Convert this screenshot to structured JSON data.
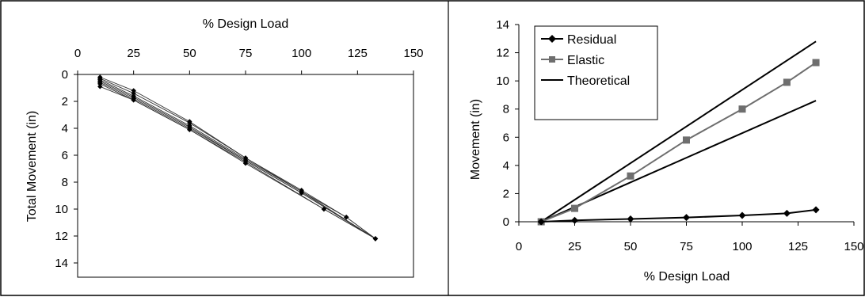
{
  "chart_data": [
    {
      "type": "line",
      "title": "",
      "xlabel": "% Design Load",
      "ylabel": "Total Movement (in)",
      "xaxis_position": "top",
      "y_inverted": true,
      "xlim": [
        0,
        150
      ],
      "ylim": [
        0,
        15
      ],
      "xticks": [
        "0",
        "25",
        "50",
        "75",
        "100",
        "125",
        "150"
      ],
      "yticks": [
        "0",
        "2",
        "4",
        "6",
        "8",
        "10",
        "12",
        "14"
      ],
      "grid": false,
      "legend": null,
      "series": [
        {
          "x": [
            10,
            25,
            50,
            75,
            100,
            120,
            133
          ],
          "y": [
            0.2,
            1.2,
            3.5,
            6.2,
            8.6,
            10.6,
            12.2
          ]
        },
        {
          "x": [
            10,
            25,
            50,
            75,
            100,
            120,
            133
          ],
          "y": [
            0.3,
            1.4,
            3.6,
            6.2,
            8.7,
            10.6,
            12.2
          ]
        },
        {
          "x": [
            10,
            25,
            50,
            75,
            100,
            133
          ],
          "y": [
            0.4,
            1.6,
            3.8,
            6.3,
            8.7,
            12.2
          ]
        },
        {
          "x": [
            10,
            25,
            50,
            75,
            100,
            133
          ],
          "y": [
            0.5,
            1.7,
            3.9,
            6.4,
            8.8,
            12.2
          ]
        },
        {
          "x": [
            10,
            25,
            50,
            75,
            100,
            133
          ],
          "y": [
            0.6,
            1.8,
            4.0,
            6.4,
            8.8,
            12.2
          ]
        },
        {
          "x": [
            10,
            25,
            50,
            75,
            110,
            133
          ],
          "y": [
            0.7,
            1.9,
            4.1,
            6.5,
            10.0,
            12.2
          ]
        },
        {
          "x": [
            10,
            25,
            50,
            75,
            110,
            133
          ],
          "y": [
            0.9,
            1.9,
            4.1,
            6.6,
            10.0,
            12.2
          ]
        }
      ]
    },
    {
      "type": "line",
      "title": "",
      "xlabel": "% Design Load",
      "ylabel": "Movement (in)",
      "xlim": [
        0,
        150
      ],
      "ylim": [
        0,
        14
      ],
      "xticks": [
        "0",
        "25",
        "50",
        "75",
        "100",
        "125",
        "150"
      ],
      "yticks": [
        "0",
        "2",
        "4",
        "6",
        "8",
        "10",
        "12",
        "14"
      ],
      "grid": false,
      "legend": "top-left",
      "series": [
        {
          "name": "Residual",
          "marker": "diamond",
          "color": "#000000",
          "x": [
            10,
            25,
            50,
            75,
            100,
            120,
            133
          ],
          "y": [
            0.0,
            0.1,
            0.2,
            0.3,
            0.45,
            0.6,
            0.85
          ]
        },
        {
          "name": "Elastic",
          "marker": "square",
          "color": "#6e6e6e",
          "x": [
            10,
            25,
            50,
            75,
            100,
            120,
            133
          ],
          "y": [
            0.0,
            0.95,
            3.25,
            5.8,
            8.0,
            9.9,
            11.3
          ]
        },
        {
          "name": "Theoretical",
          "marker": "none",
          "color": "#000000",
          "lines": [
            {
              "x": [
                10,
                133
              ],
              "y": [
                0.0,
                12.8
              ]
            },
            {
              "x": [
                10,
                133
              ],
              "y": [
                0.0,
                8.6
              ]
            }
          ]
        }
      ]
    }
  ]
}
